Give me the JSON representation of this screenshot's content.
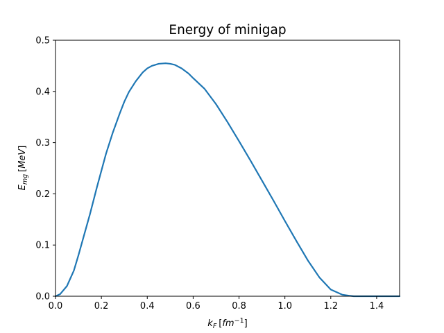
{
  "chart_data": {
    "type": "line",
    "title": "Energy of minigap",
    "xlabel": {
      "base": "k",
      "sub": "F",
      "bracket_open": "[",
      "unit_base": "fm",
      "unit_sup": "−1",
      "bracket_close": "]"
    },
    "ylabel": {
      "base": "E",
      "sub": "mg",
      "bracket_open": "[",
      "unit": "MeV",
      "bracket_close": "]"
    },
    "xlim": [
      0.0,
      1.5
    ],
    "ylim": [
      0.0,
      0.5
    ],
    "xticks": [
      "0.0",
      "0.2",
      "0.4",
      "0.6",
      "0.8",
      "1.0",
      "1.2",
      "1.4"
    ],
    "yticks": [
      "0.0",
      "0.1",
      "0.2",
      "0.3",
      "0.4",
      "0.5"
    ],
    "grid": false,
    "legend": false,
    "series": [
      {
        "color": "#1f77b4",
        "x": [
          0.0,
          0.02,
          0.05,
          0.08,
          0.1,
          0.12,
          0.15,
          0.18,
          0.2,
          0.22,
          0.25,
          0.28,
          0.3,
          0.32,
          0.35,
          0.38,
          0.4,
          0.42,
          0.45,
          0.48,
          0.5,
          0.52,
          0.55,
          0.58,
          0.6,
          0.65,
          0.7,
          0.75,
          0.8,
          0.85,
          0.9,
          0.95,
          1.0,
          1.05,
          1.1,
          1.15,
          1.2,
          1.25,
          1.28,
          1.3,
          1.35,
          1.4,
          1.45,
          1.5
        ],
        "y": [
          0.0,
          0.004,
          0.02,
          0.05,
          0.08,
          0.112,
          0.16,
          0.212,
          0.245,
          0.278,
          0.32,
          0.357,
          0.38,
          0.399,
          0.42,
          0.437,
          0.445,
          0.45,
          0.454,
          0.455,
          0.454,
          0.452,
          0.445,
          0.435,
          0.426,
          0.405,
          0.375,
          0.34,
          0.303,
          0.265,
          0.226,
          0.187,
          0.147,
          0.108,
          0.07,
          0.037,
          0.013,
          0.003,
          0.001,
          0.0,
          0.0,
          0.0,
          0.0,
          0.0
        ]
      }
    ]
  }
}
